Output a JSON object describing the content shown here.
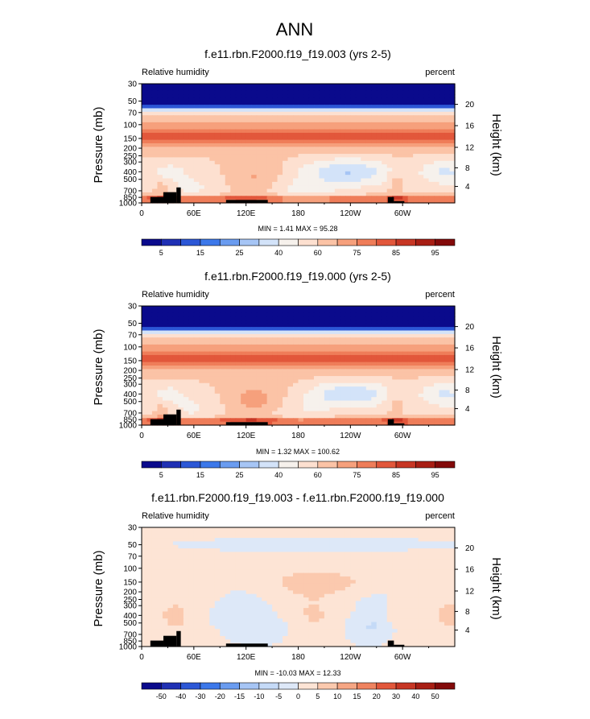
{
  "figure": {
    "title": "ANN"
  },
  "chart_data": [
    {
      "type": "heatmap",
      "title": "f.e11.rbn.F2000.f19_f19.003 (yrs 2-5)",
      "left_label": "Relative humidity",
      "right_label": "percent",
      "ylabel": "Pressure (mb)",
      "ylabel_right": "Height (km)",
      "x_ticks": [
        "0",
        "60E",
        "120E",
        "180",
        "120W",
        "60W"
      ],
      "y_ticks": [
        "30",
        "50",
        "70",
        "100",
        "150",
        "200",
        "250",
        "300",
        "400",
        "500",
        "700",
        "850",
        "1000"
      ],
      "height_ticks": [
        "20",
        "16",
        "12",
        "8",
        "4"
      ],
      "stats": "MIN =   1.41  MAX = 95.28",
      "colorbar_labels": [
        "5",
        "15",
        "25",
        "40",
        "60",
        "75",
        "85",
        "95"
      ],
      "min": 1.41,
      "max": 95.28
    },
    {
      "type": "heatmap",
      "title": "f.e11.rbn.F2000.f19_f19.000 (yrs 2-5)",
      "left_label": "Relative humidity",
      "right_label": "percent",
      "ylabel": "Pressure (mb)",
      "ylabel_right": "Height (km)",
      "x_ticks": [
        "0",
        "60E",
        "120E",
        "180",
        "120W",
        "60W"
      ],
      "y_ticks": [
        "30",
        "50",
        "70",
        "100",
        "150",
        "200",
        "250",
        "300",
        "400",
        "500",
        "700",
        "850",
        "1000"
      ],
      "height_ticks": [
        "20",
        "16",
        "12",
        "8",
        "4"
      ],
      "stats": "MIN =   1.32  MAX = 100.62",
      "colorbar_labels": [
        "5",
        "15",
        "25",
        "40",
        "60",
        "75",
        "85",
        "95"
      ],
      "min": 1.32,
      "max": 100.62
    },
    {
      "type": "heatmap",
      "title": "f.e11.rbn.F2000.f19_f19.003 - f.e11.rbn.F2000.f19_f19.000",
      "left_label": "Relative humidity",
      "right_label": "percent",
      "ylabel": "Pressure (mb)",
      "ylabel_right": "Height (km)",
      "x_ticks": [
        "0",
        "60E",
        "120E",
        "180",
        "120W",
        "60W"
      ],
      "y_ticks": [
        "30",
        "50",
        "70",
        "100",
        "150",
        "200",
        "250",
        "300",
        "400",
        "500",
        "700",
        "850",
        "1000"
      ],
      "height_ticks": [
        "20",
        "16",
        "12",
        "8",
        "4"
      ],
      "stats": "MIN = -10.03  MAX = 12.33",
      "colorbar_labels": [
        "-50",
        "-40",
        "-30",
        "-20",
        "-15",
        "-10",
        "-5",
        "0",
        "5",
        "10",
        "15",
        "20",
        "30",
        "40",
        "50"
      ],
      "min": -10.03,
      "max": 12.33
    }
  ],
  "colors": {
    "rh_palette": [
      "#0a0a8c",
      "#1f30b4",
      "#2c57d6",
      "#3c78ea",
      "#6a9cf0",
      "#a6c5f5",
      "#d3e3f9",
      "#f6f1ec",
      "#fde0d0",
      "#fbc3a6",
      "#f6a07c",
      "#ef7d59",
      "#e2573b",
      "#c73624",
      "#a81e14",
      "#830a0a"
    ],
    "diff_palette": [
      "#0a0a8c",
      "#1f30b4",
      "#2c57d6",
      "#3c78ea",
      "#6a9cf0",
      "#a6c5f5",
      "#c5daf7",
      "#dde8f8",
      "#fde4d5",
      "#fbc9ae",
      "#f6a684",
      "#ef835f",
      "#e2573b",
      "#c73624",
      "#a81e14",
      "#830a0a"
    ],
    "topography": "#000000"
  }
}
